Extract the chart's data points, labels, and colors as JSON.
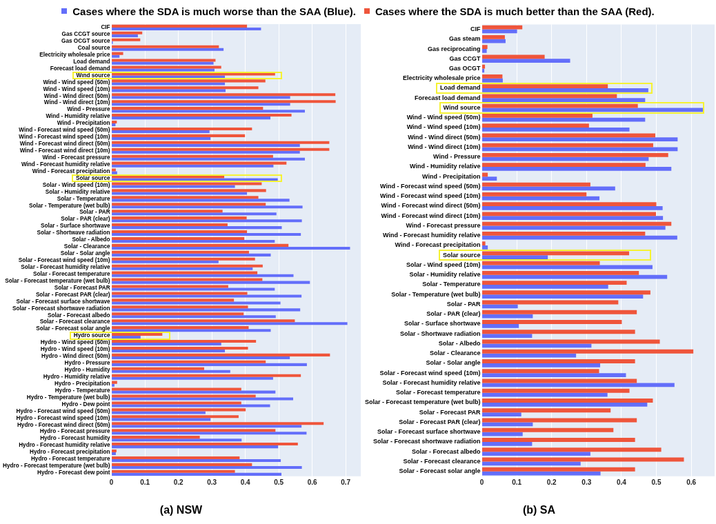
{
  "chart_data": [
    {
      "type": "bar",
      "orientation": "horizontal",
      "title": "(a) NSW",
      "legend": "top",
      "grid": "x",
      "xlim": [
        0,
        0.745
      ],
      "xticks": [
        0,
        0.1,
        0.2,
        0.3,
        0.4,
        0.5,
        0.6,
        0.7
      ],
      "categories": [
        "CIF",
        "Gas CCGT source",
        "Gas OCGT source",
        "Coal source",
        "Electricity wholesale price",
        "Load demand",
        "Forecast load demand",
        "Wind source",
        "Wind - Wind speed (50m)",
        "Wind - Wind speed (10m)",
        "Wind - Wind direct (50m)",
        "Wind - Wind direct (10m)",
        "Wind - Pressure",
        "Wind - Humidity relative",
        "Wind - Precipitation",
        "Wind - Forecast wind speed (50m)",
        "Wind - Forecast wind speed (10m)",
        "Wind - Forecast wind direct (50m)",
        "Wind - Forecast wind direct (10m)",
        "Wind - Forecast pressure",
        "Wind - Forecast humidity relative",
        "Wind - Forecast precipitation",
        "Solar source",
        "Solar - Wind speed (10m)",
        "Solar - Humidity relative",
        "Solar - Temperature",
        "Solar - Temperature (wet bulb)",
        "Solar - PAR",
        "Solar - PAR (clear)",
        "Solar - Surface shortwave",
        "Solar - Shortwave radiation",
        "Solar - Albedo",
        "Solar - Clearance",
        "Solar - Solar angle",
        "Solar - Forecast wind speed (10m)",
        "Solar - Forecast humidity relative",
        "Solar - Forecast temperature",
        "Solar - Forecast temperature (wet bulb)",
        "Solar - Forecast PAR",
        "Solar - Forecast PAR (clear)",
        "Solar - Forecast surface shortwave",
        "Solar - Forecast shortwave radiation",
        "Solar - Forecast albedo",
        "Solar - Forecast clearance",
        "Solar - Forecast solar angle",
        "Hydro source",
        "Hydro - Wind speed (50m)",
        "Hydro - Wind speed (10m)",
        "Hydro - Wind direct (50m)",
        "Hydro - Pressure",
        "Hydro - Humidity",
        "Hydro - Humidity relative",
        "Hydro - Precipitation",
        "Hydro - Temperature",
        "Hydro - Temperature (wet bulb)",
        "Hydro - Dew point",
        "Hydro - Forecast wind speed (50m)",
        "Hydro - Forecast wind speed (10m)",
        "Hydro - Forecast wind direct (50m)",
        "Hydro - Forecast pressure",
        "Hydro - Forecast humidity",
        "Hydro - Forecast humidity relative",
        "Hydro - Forecast precipitation",
        "Hydro - Forecast temperature",
        "Hydro - Forecast temperature (wet bulb)",
        "Hydro - Forecast dew point"
      ],
      "series": [
        {
          "name": "Cases where the SDA is much worse than the SAA (Blue).",
          "color": "#636efa",
          "values": [
            0.447,
            0.079,
            0.004,
            0.335,
            0.024,
            0.305,
            0.308,
            0.339,
            0.339,
            0.341,
            0.534,
            0.534,
            0.578,
            0.475,
            0.012,
            0.293,
            0.296,
            0.563,
            0.563,
            0.578,
            0.484,
            0.017,
            0.497,
            0.369,
            0.405,
            0.532,
            0.571,
            0.493,
            0.569,
            0.509,
            0.566,
            0.488,
            0.713,
            0.476,
            0.32,
            0.422,
            0.544,
            0.593,
            0.488,
            0.568,
            0.505,
            0.564,
            0.491,
            0.705,
            0.476,
            0.087,
            0.328,
            0.339,
            0.533,
            0.584,
            0.355,
            0.483,
            0.009,
            0.49,
            0.543,
            0.474,
            0.281,
            0.296,
            0.568,
            0.583,
            0.389,
            0.498,
            0.013,
            0.506,
            0.569,
            0.508
          ]
        },
        {
          "name": "Cases where the SDA is much better than the SAA (Red).",
          "color": "#ef553b",
          "values": [
            0.405,
            0.092,
            0.086,
            0.321,
            0.035,
            0.311,
            0.328,
            0.489,
            0.46,
            0.439,
            0.669,
            0.67,
            0.453,
            0.538,
            0.016,
            0.42,
            0.399,
            0.651,
            0.651,
            0.483,
            0.523,
            0.013,
            0.337,
            0.449,
            0.462,
            0.439,
            0.461,
            0.332,
            0.404,
            0.347,
            0.405,
            0.397,
            0.529,
            0.411,
            0.429,
            0.452,
            0.436,
            0.451,
            0.349,
            0.406,
            0.366,
            0.408,
            0.395,
            0.548,
            0.41,
            0.152,
            0.432,
            0.408,
            0.653,
            0.461,
            0.277,
            0.566,
            0.017,
            0.388,
            0.431,
            0.388,
            0.401,
            0.38,
            0.634,
            0.49,
            0.264,
            0.557,
            0.015,
            0.383,
            0.42,
            0.369
          ]
        }
      ]
    },
    {
      "type": "bar",
      "orientation": "horizontal",
      "title": "(b) SA",
      "grid": "x",
      "xlim": [
        0,
        0.667
      ],
      "xticks": [
        0,
        0.1,
        0.2,
        0.3,
        0.4,
        0.5,
        0.6
      ],
      "categories": [
        "CIF",
        "Gas steam",
        "Gas reciprocating",
        "Gas CCGT",
        "Gas OCGT",
        "Electricity wholesale price",
        "Load demand",
        "Forecast load demand",
        "Wind source",
        "Wind - Wind speed (50m)",
        "Wind - Wind speed (10m)",
        "Wind - Wind direct (50m)",
        "Wind - Wind direct (10m)",
        "Wind - Pressure",
        "Wind - Humidity relative",
        "Wind - Precipitation",
        "Wind - Forecast wind speed (50m)",
        "Wind - Forecast wind speed (10m)",
        "Wind - Forecast wind direct (50m)",
        "Wind - Forecast wind direct (10m)",
        "Wind - Forecast pressure",
        "Wind - Forecast humidity relative",
        "Wind - Forecast precipitation",
        "Solar source",
        "Solar - Wind speed (10m)",
        "Solar - Humidity relative",
        "Solar - Temperature",
        "Solar - Temperature (wet bulb)",
        "Solar - PAR",
        "Solar - PAR (clear)",
        "Solar - Surface shortwave",
        "Solar - Shortwave radiation",
        "Solar - Albedo",
        "Solar - Clearance",
        "Solar - Solar angle",
        "Solar - Forecast wind speed (10m)",
        "Solar - Forecast humidity relative",
        "Solar - Forecast temperature",
        "Solar - Forecast temperature (wet bulb)",
        "Solar - Forecast PAR",
        "Solar - Forecast PAR (clear)",
        "Solar - Forecast surface shortwave",
        "Solar - Forecast shortwave radiation",
        "Solar - Forecast albedo",
        "Solar - Forecast clearance",
        "Solar - Forecast solar angle"
      ],
      "series": [
        {
          "color": "#636efa",
          "values": [
            0.101,
            0.068,
            0.014,
            0.253,
            0.007,
            0.06,
            0.477,
            0.468,
            0.635,
            0.468,
            0.423,
            0.561,
            0.561,
            0.478,
            0.543,
            0.043,
            0.382,
            0.337,
            0.518,
            0.519,
            0.526,
            0.56,
            0.017,
            0.189,
            0.489,
            0.531,
            0.362,
            0.462,
            0.103,
            0.146,
            0.106,
            0.144,
            0.314,
            0.27,
            0.339,
            0.413,
            0.552,
            0.36,
            0.474,
            0.113,
            0.146,
            0.117,
            0.144,
            0.311,
            0.283,
            0.34
          ]
        },
        {
          "color": "#ef553b",
          "values": [
            0.116,
            0.066,
            0.016,
            0.18,
            0.009,
            0.059,
            0.361,
            0.387,
            0.447,
            0.317,
            0.307,
            0.497,
            0.491,
            0.534,
            0.469,
            0.017,
            0.311,
            0.3,
            0.5,
            0.499,
            0.543,
            0.468,
            0.01,
            0.422,
            0.338,
            0.45,
            0.415,
            0.483,
            0.391,
            0.444,
            0.401,
            0.439,
            0.51,
            0.606,
            0.439,
            0.336,
            0.444,
            0.423,
            0.49,
            0.369,
            0.444,
            0.377,
            0.439,
            0.514,
            0.579,
            0.439
          ]
        }
      ]
    }
  ]
}
